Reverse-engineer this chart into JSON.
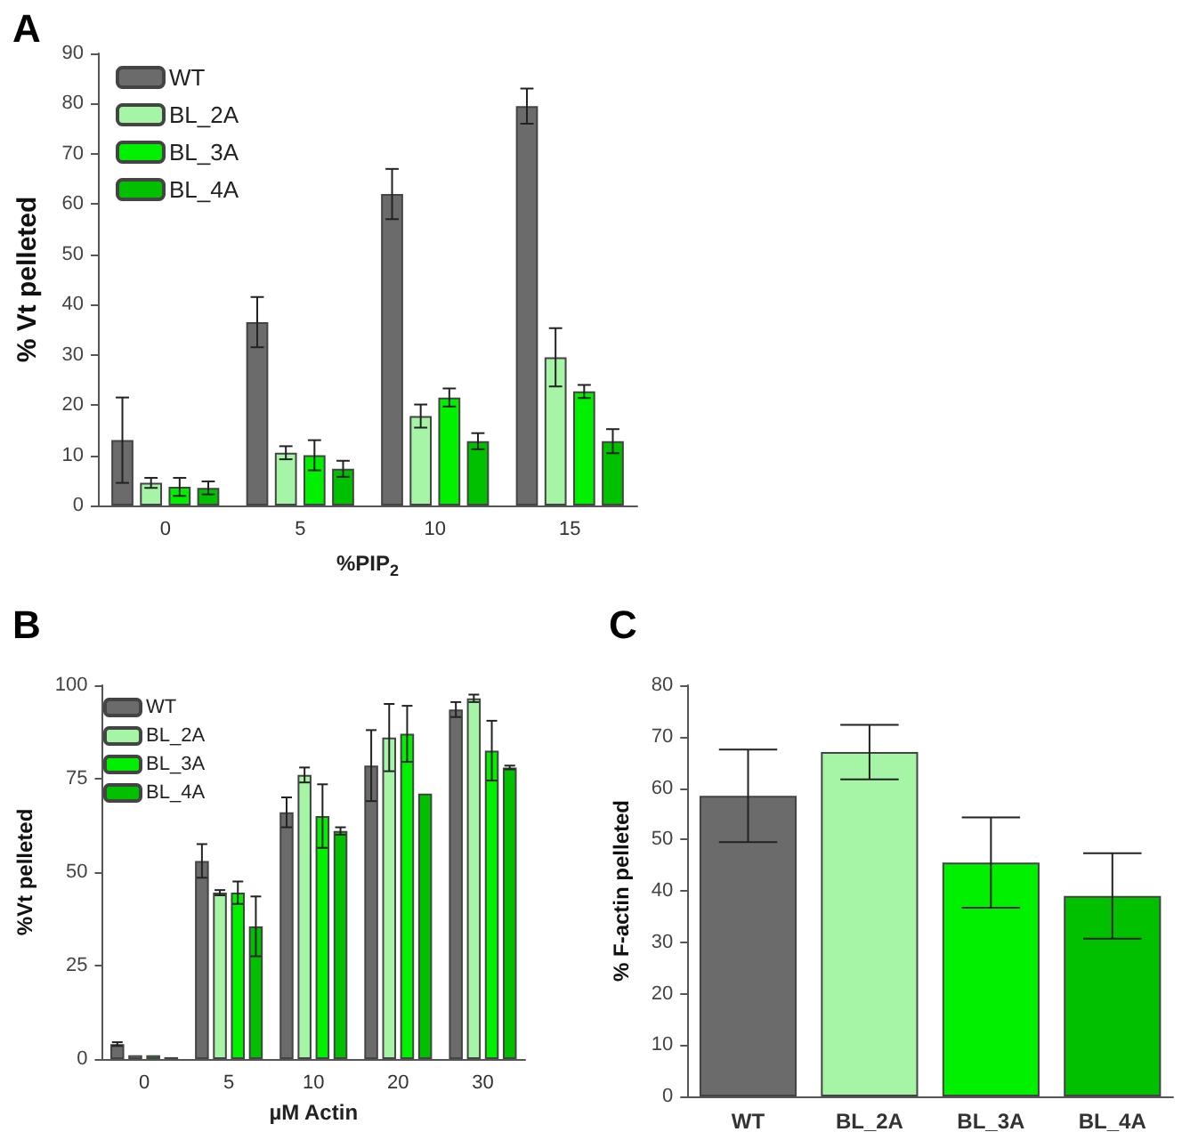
{
  "chart_data": [
    {
      "type": "bar",
      "title": "A",
      "xlabel": "%PIP$_{2}$",
      "ylabel": "% Vt pelleted",
      "categories": [
        "0",
        "5",
        "10",
        "15"
      ],
      "ylim": [
        0,
        90
      ],
      "yticks": [
        0,
        10,
        20,
        30,
        40,
        50,
        60,
        70,
        80,
        90
      ],
      "legend": "top left",
      "grid": false,
      "series": [
        {
          "name": "WT",
          "color": "#6b6b6b",
          "values": [
            13,
            36.5,
            62,
            79.5
          ],
          "errors": [
            8.5,
            5,
            5,
            3.5
          ]
        },
        {
          "name": "BL_2A",
          "color": "#a6f5a6",
          "values": [
            4.5,
            10.5,
            17.8,
            29.5
          ],
          "errors": [
            1,
            1.3,
            2.3,
            5.8
          ]
        },
        {
          "name": "BL_3A",
          "color": "#00f000",
          "values": [
            3.7,
            10,
            21.5,
            22.7
          ],
          "errors": [
            1.8,
            3,
            1.8,
            1.3
          ]
        },
        {
          "name": "BL_4A",
          "color": "#00c000",
          "values": [
            3.5,
            7.3,
            12.8,
            12.8
          ],
          "errors": [
            1.3,
            1.6,
            1.6,
            2.4
          ]
        }
      ]
    },
    {
      "type": "bar",
      "title": "B",
      "xlabel": "µM Actin",
      "ylabel": "%Vt pelleted",
      "categories": [
        "0",
        "5",
        "10",
        "20",
        "30"
      ],
      "ylim": [
        0,
        100
      ],
      "yticks": [
        0,
        25,
        50,
        75,
        100
      ],
      "legend": "top left",
      "grid": false,
      "series": [
        {
          "name": "WT",
          "color": "#6b6b6b",
          "values": [
            4,
            53,
            66,
            78.5,
            93.5
          ],
          "errors": [
            0.5,
            4.5,
            4,
            9.5,
            2
          ]
        },
        {
          "name": "BL_2A",
          "color": "#a6f5a6",
          "values": [
            1,
            44.5,
            76,
            86,
            96.5
          ],
          "errors": [
            null,
            0.7,
            2,
            9,
            1
          ]
        },
        {
          "name": "BL_3A",
          "color": "#00f000",
          "values": [
            1,
            44.5,
            65,
            87,
            82.5
          ],
          "errors": [
            null,
            3,
            8.5,
            7.5,
            8
          ]
        },
        {
          "name": "BL_4A",
          "color": "#00c000",
          "values": [
            0.5,
            35.5,
            61,
            71,
            78
          ],
          "errors": [
            null,
            8,
            1,
            null,
            0.5
          ]
        }
      ]
    },
    {
      "type": "bar",
      "title": "C",
      "ylabel": "% F-actin pelleted",
      "categories": [
        "WT",
        "BL_2A",
        "BL_3A",
        "BL_4A"
      ],
      "ylim": [
        0,
        80
      ],
      "yticks": [
        0,
        10,
        20,
        30,
        40,
        50,
        60,
        70,
        80
      ],
      "grid": false,
      "values": [
        58.5,
        67,
        45.5,
        39
      ],
      "colors": [
        "#6b6b6b",
        "#a6f5a6",
        "#00f000",
        "#00c000"
      ],
      "errors": [
        9,
        5.3,
        8.8,
        8.3
      ]
    }
  ]
}
